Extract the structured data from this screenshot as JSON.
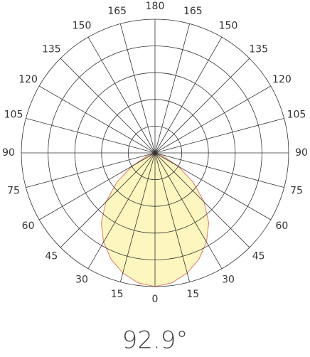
{
  "chart_data": {
    "type": "polar",
    "angles": [
      -90,
      -82.5,
      -75,
      -67.5,
      -60,
      -52.5,
      -45,
      -37.5,
      -30,
      -22.5,
      -15,
      -7.5,
      0,
      7.5,
      15,
      22.5,
      30,
      37.5,
      45,
      52.5,
      60,
      67.5,
      75,
      82.5,
      90
    ],
    "values": [
      0,
      0,
      0.01,
      0.07,
      0.2,
      0.36,
      0.52,
      0.66,
      0.77,
      0.86,
      0.93,
      0.98,
      1.0,
      0.98,
      0.93,
      0.86,
      0.77,
      0.66,
      0.52,
      0.36,
      0.2,
      0.07,
      0.01,
      0,
      0
    ],
    "fill": "#fdf6bf",
    "color": "#e07a6a",
    "rlim": [
      0,
      1
    ],
    "rticks": [
      0.2,
      0.4,
      0.6,
      0.8,
      1.0
    ],
    "angle_ticks": [
      0,
      15,
      30,
      45,
      60,
      75,
      90,
      105,
      120,
      135,
      150,
      165,
      180
    ],
    "annotation": "92.9°",
    "grid": true
  }
}
